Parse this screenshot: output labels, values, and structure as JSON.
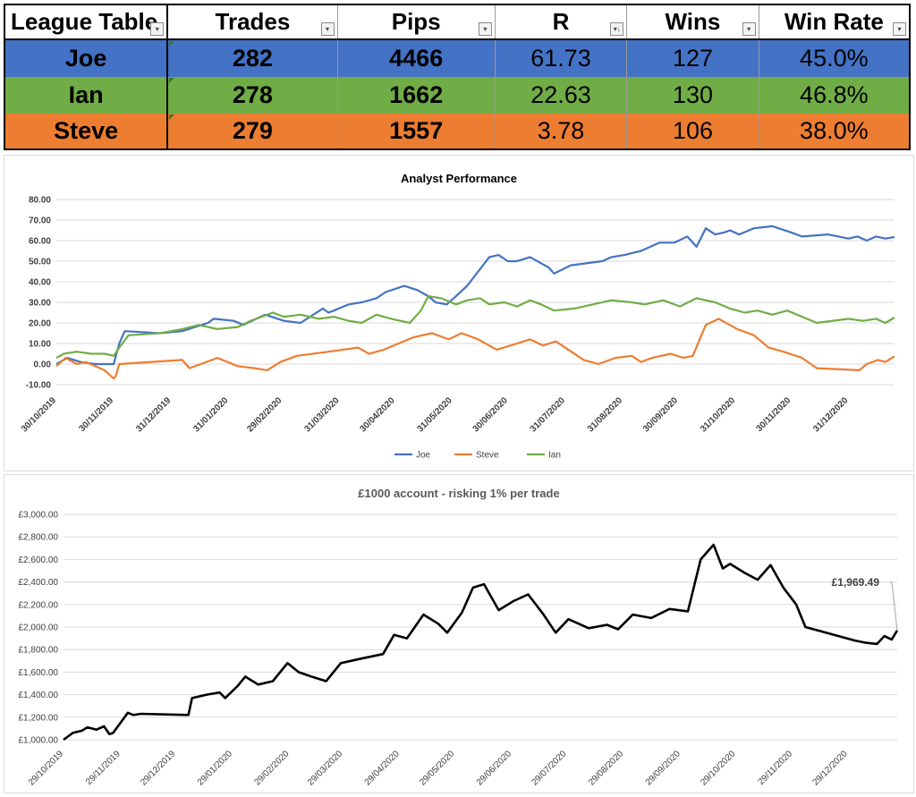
{
  "league_table": {
    "headers": [
      "League Table",
      "Trades",
      "Pips",
      "R",
      "Wins",
      "Win Rate"
    ],
    "rows": [
      {
        "name": "Joe",
        "trades": "282",
        "pips": "4466",
        "r": "61.73",
        "wins": "127",
        "win_rate": "45.0%",
        "color": "#4472c4"
      },
      {
        "name": "Ian",
        "trades": "278",
        "pips": "1662",
        "r": "22.63",
        "wins": "130",
        "win_rate": "46.8%",
        "color": "#70ad47"
      },
      {
        "name": "Steve",
        "trades": "279",
        "pips": "1557",
        "r": "3.78",
        "wins": "106",
        "win_rate": "38.0%",
        "color": "#ed7d31"
      }
    ]
  },
  "chart_data": [
    {
      "type": "line",
      "title": "Analyst Performance",
      "ylim": [
        -10,
        80
      ],
      "yticks": [
        "-10.00",
        "0.00",
        "10.00",
        "20.00",
        "30.00",
        "40.00",
        "50.00",
        "60.00",
        "70.00",
        "80.00"
      ],
      "xlim": [
        "2019-10-30",
        "2021-01-25"
      ],
      "xticks": [
        "30/10/2019",
        "30/11/2019",
        "31/12/2019",
        "31/01/2020",
        "29/02/2020",
        "31/03/2020",
        "30/04/2020",
        "31/05/2020",
        "30/06/2020",
        "31/07/2020",
        "31/08/2020",
        "30/09/2020",
        "31/10/2020",
        "30/11/2020",
        "31/12/2020"
      ],
      "grid": true,
      "legend_position": "bottom",
      "series": [
        {
          "name": "Joe",
          "color": "#4472c4",
          "x": [
            "2019-10-30",
            "2019-11-05",
            "2019-11-12",
            "2019-11-20",
            "2019-11-25",
            "2019-11-30",
            "2019-12-03",
            "2019-12-06",
            "2019-12-25",
            "2020-01-06",
            "2020-01-20",
            "2020-01-23",
            "2020-02-03",
            "2020-02-08",
            "2020-02-15",
            "2020-02-20",
            "2020-03-01",
            "2020-03-10",
            "2020-03-22",
            "2020-03-25",
            "2020-03-28",
            "2020-04-05",
            "2020-04-12",
            "2020-04-20",
            "2020-04-25",
            "2020-05-05",
            "2020-05-12",
            "2020-05-18",
            "2020-05-22",
            "2020-05-28",
            "2020-06-02",
            "2020-06-08",
            "2020-06-14",
            "2020-06-20",
            "2020-06-25",
            "2020-06-30",
            "2020-07-05",
            "2020-07-12",
            "2020-07-18",
            "2020-07-22",
            "2020-07-25",
            "2020-08-03",
            "2020-08-20",
            "2020-08-25",
            "2020-09-01",
            "2020-09-10",
            "2020-09-20",
            "2020-09-28",
            "2020-10-05",
            "2020-10-10",
            "2020-10-15",
            "2020-10-20",
            "2020-10-25",
            "2020-10-28",
            "2020-11-02",
            "2020-11-10",
            "2020-11-20",
            "2020-11-30",
            "2020-12-06",
            "2020-12-20",
            "2020-12-31",
            "2021-01-05",
            "2021-01-10",
            "2021-01-15",
            "2021-01-20",
            "2021-01-25"
          ],
          "y": [
            0,
            3,
            1,
            0,
            0,
            0,
            10,
            16,
            15,
            16,
            20,
            22,
            21,
            19,
            22,
            24,
            21,
            20,
            27,
            25,
            26,
            29,
            30,
            32,
            35,
            38,
            36,
            33,
            30,
            29,
            33,
            38,
            45,
            52,
            53,
            50,
            50,
            52,
            49,
            47,
            44,
            48,
            50,
            52,
            53,
            55,
            59,
            59,
            62,
            57,
            66,
            63,
            64,
            65,
            63,
            66,
            67,
            64,
            62,
            63,
            61,
            62,
            60,
            62,
            61,
            61.73
          ]
        },
        {
          "name": "Steve",
          "color": "#ed7d31",
          "x": [
            "2019-10-30",
            "2019-11-04",
            "2019-11-10",
            "2019-11-15",
            "2019-11-20",
            "2019-11-25",
            "2019-11-30",
            "2019-12-01",
            "2019-12-03",
            "2020-01-06",
            "2020-01-10",
            "2020-01-25",
            "2020-02-05",
            "2020-02-14",
            "2020-02-21",
            "2020-02-28",
            "2020-03-08",
            "2020-03-25",
            "2020-04-10",
            "2020-04-16",
            "2020-04-24",
            "2020-05-10",
            "2020-05-20",
            "2020-05-29",
            "2020-06-05",
            "2020-06-14",
            "2020-06-24",
            "2020-07-05",
            "2020-07-12",
            "2020-07-19",
            "2020-07-26",
            "2020-08-10",
            "2020-08-18",
            "2020-08-27",
            "2020-09-05",
            "2020-09-10",
            "2020-09-16",
            "2020-09-26",
            "2020-10-03",
            "2020-10-08",
            "2020-10-15",
            "2020-10-22",
            "2020-11-01",
            "2020-11-10",
            "2020-11-18",
            "2020-11-26",
            "2020-12-06",
            "2020-12-14",
            "2021-01-06",
            "2021-01-10",
            "2021-01-16",
            "2021-01-20",
            "2021-01-25"
          ],
          "y": [
            -1,
            3,
            0,
            1,
            -1,
            -3,
            -7,
            -6,
            0,
            2,
            -2,
            3,
            -1,
            -2,
            -3,
            1,
            4,
            6,
            8,
            5,
            7,
            13,
            15,
            12,
            15,
            12,
            7,
            10,
            12,
            9,
            11,
            2,
            0,
            3,
            4,
            1,
            3,
            5,
            3,
            4,
            19,
            22,
            17,
            14,
            8,
            6,
            3,
            -2,
            -3,
            0,
            2,
            1,
            3.78
          ]
        },
        {
          "name": "Ian",
          "color": "#70ad47",
          "x": [
            "2019-10-30",
            "2019-11-03",
            "2019-11-10",
            "2019-11-18",
            "2019-11-25",
            "2019-11-30",
            "2019-12-03",
            "2019-12-08",
            "2019-12-25",
            "2020-01-06",
            "2020-01-15",
            "2020-01-25",
            "2020-02-05",
            "2020-02-12",
            "2020-02-18",
            "2020-02-24",
            "2020-03-01",
            "2020-03-10",
            "2020-03-20",
            "2020-03-28",
            "2020-04-05",
            "2020-04-12",
            "2020-04-20",
            "2020-04-28",
            "2020-05-08",
            "2020-05-14",
            "2020-05-18",
            "2020-05-25",
            "2020-06-02",
            "2020-06-08",
            "2020-06-15",
            "2020-06-20",
            "2020-06-28",
            "2020-07-05",
            "2020-07-12",
            "2020-07-18",
            "2020-07-25",
            "2020-08-05",
            "2020-08-15",
            "2020-08-25",
            "2020-09-05",
            "2020-09-12",
            "2020-09-22",
            "2020-10-01",
            "2020-10-10",
            "2020-10-20",
            "2020-10-28",
            "2020-11-05",
            "2020-11-12",
            "2020-11-20",
            "2020-11-28",
            "2020-12-06",
            "2020-12-14",
            "2020-12-31",
            "2021-01-08",
            "2021-01-15",
            "2021-01-20",
            "2021-01-25"
          ],
          "y": [
            3,
            5,
            6,
            5,
            5,
            4,
            8,
            14,
            15,
            17,
            19,
            17,
            18,
            21,
            23,
            25,
            23,
            24,
            22,
            23,
            21,
            20,
            24,
            22,
            20,
            26,
            33,
            32,
            29,
            31,
            32,
            29,
            30,
            28,
            31,
            29,
            26,
            27,
            29,
            31,
            30,
            29,
            31,
            28,
            32,
            30,
            27,
            25,
            26,
            24,
            26,
            23,
            20,
            22,
            21,
            22,
            20,
            22.63
          ]
        }
      ]
    },
    {
      "type": "line",
      "title": "£1000 account - risking 1% per trade",
      "ylim": [
        1000,
        3000
      ],
      "yticks": [
        "£1,000.00",
        "£1,200.00",
        "£1,400.00",
        "£1,600.00",
        "£1,800.00",
        "£2,000.00",
        "£2,200.00",
        "£2,400.00",
        "£2,600.00",
        "£2,800.00",
        "£3,000.00"
      ],
      "xlim": [
        "2019-10-29",
        "2021-01-25"
      ],
      "xticks": [
        "29/10/2019",
        "29/11/2019",
        "29/12/2019",
        "29/01/2020",
        "29/02/2020",
        "29/03/2020",
        "29/04/2020",
        "29/05/2020",
        "29/06/2020",
        "29/07/2020",
        "29/08/2020",
        "29/09/2020",
        "29/10/2020",
        "29/11/2020",
        "29/12/2020"
      ],
      "grid": true,
      "annotation": "£1,969.49",
      "series": [
        {
          "name": "",
          "color": "#000000",
          "x": [
            "2019-10-29",
            "2019-11-03",
            "2019-11-08",
            "2019-11-11",
            "2019-11-16",
            "2019-11-20",
            "2019-11-23",
            "2019-11-25",
            "2019-12-03",
            "2019-12-06",
            "2019-12-10",
            "2020-01-05",
            "2020-01-07",
            "2020-01-15",
            "2020-01-22",
            "2020-01-25",
            "2020-02-01",
            "2020-02-05",
            "2020-02-12",
            "2020-02-20",
            "2020-02-28",
            "2020-03-05",
            "2020-03-12",
            "2020-03-20",
            "2020-03-28",
            "2020-04-08",
            "2020-04-20",
            "2020-04-26",
            "2020-05-03",
            "2020-05-12",
            "2020-05-20",
            "2020-05-25",
            "2020-06-02",
            "2020-06-08",
            "2020-06-14",
            "2020-06-22",
            "2020-06-30",
            "2020-07-08",
            "2020-07-16",
            "2020-07-23",
            "2020-07-30",
            "2020-08-10",
            "2020-08-20",
            "2020-08-26",
            "2020-09-03",
            "2020-09-13",
            "2020-09-23",
            "2020-10-03",
            "2020-10-10",
            "2020-10-17",
            "2020-10-22",
            "2020-10-26",
            "2020-11-03",
            "2020-11-10",
            "2020-11-17",
            "2020-11-24",
            "2020-12-01",
            "2020-12-06",
            "2021-01-02",
            "2021-01-08",
            "2021-01-14",
            "2021-01-18",
            "2021-01-22",
            "2021-01-25"
          ],
          "y": [
            1000,
            1060,
            1080,
            1110,
            1090,
            1120,
            1050,
            1060,
            1240,
            1220,
            1230,
            1220,
            1370,
            1400,
            1420,
            1370,
            1480,
            1560,
            1490,
            1520,
            1680,
            1600,
            1560,
            1520,
            1680,
            1720,
            1760,
            1930,
            1900,
            2110,
            2030,
            1950,
            2130,
            2350,
            2380,
            2150,
            2230,
            2290,
            2120,
            1950,
            2070,
            1990,
            2020,
            1980,
            2110,
            2080,
            2160,
            2140,
            2600,
            2730,
            2520,
            2560,
            2480,
            2420,
            2550,
            2350,
            2200,
            2000,
            1880,
            1860,
            1850,
            1920,
            1890,
            1969.49
          ]
        }
      ]
    }
  ]
}
